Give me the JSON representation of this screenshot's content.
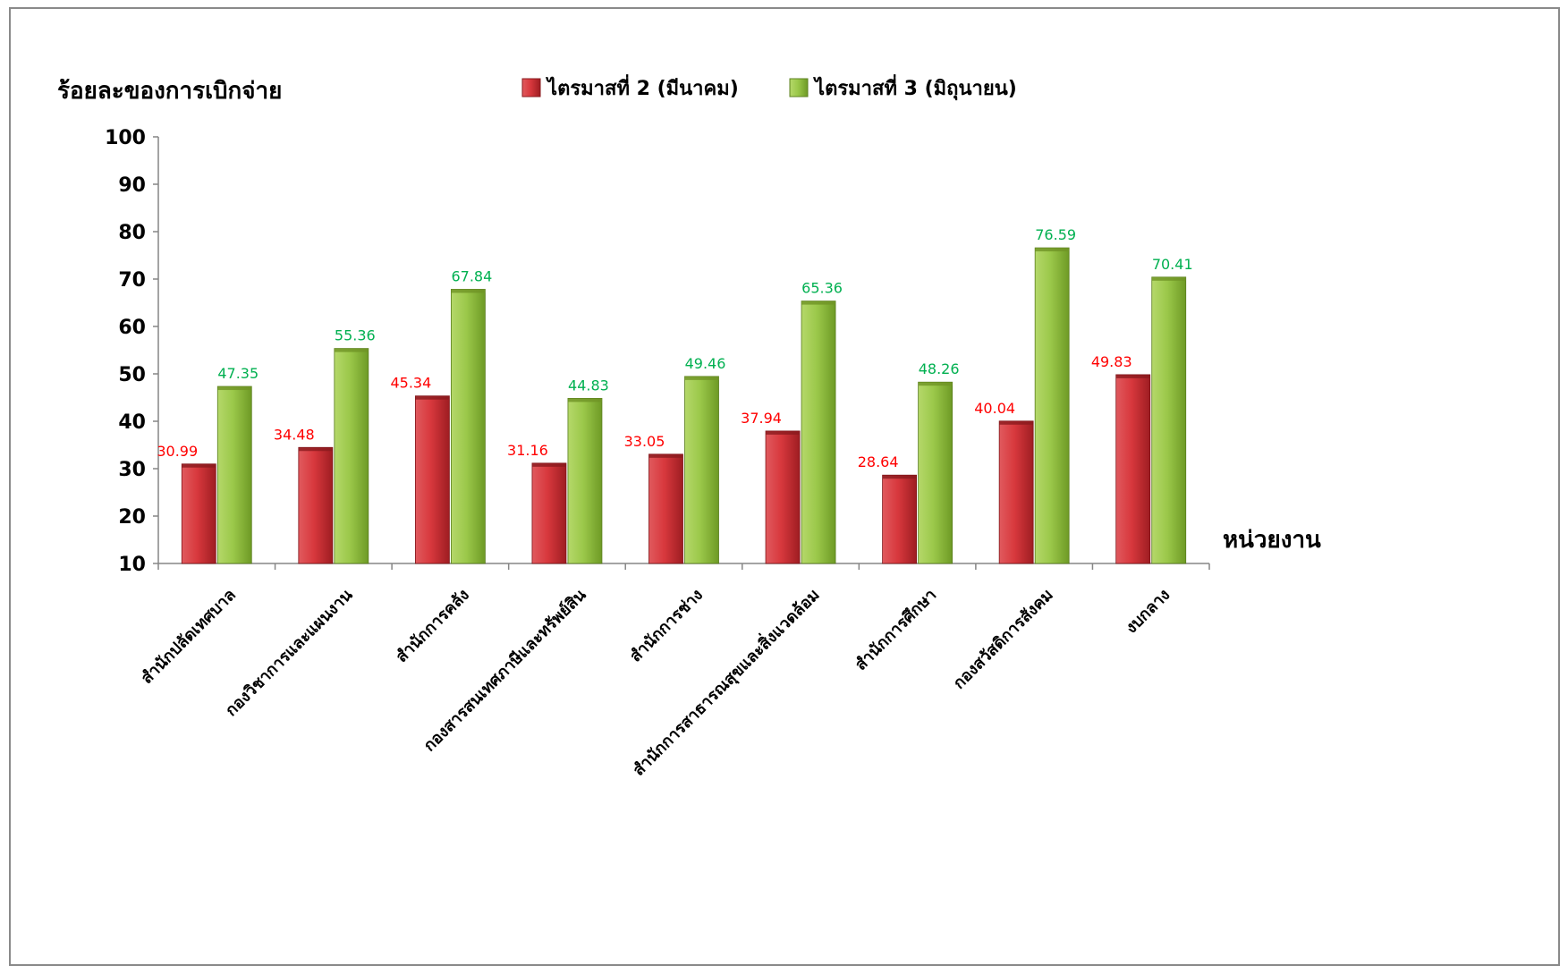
{
  "chart_data": {
    "type": "bar",
    "ylabel": "ร้อยละของการเบิกจ่าย",
    "xlabel": "หน่วยงาน",
    "ylim": [
      10,
      100
    ],
    "yticks": [
      10,
      20,
      30,
      40,
      50,
      60,
      70,
      80,
      90,
      100
    ],
    "grid": false,
    "legend_position": "top",
    "categories": [
      "สำนักปลัดเทศบาล",
      "กองวิชาการและแผนงาน",
      "สำนักการคลัง",
      "กองสารสนเทศภาษีและทรัพย์สิน",
      "สำนักการช่าง",
      "สำนักการสาธารณสุขและสิ่งแวดล้อม",
      "สำนักการศึกษา",
      "กองสวัสดิการสังคม",
      "งบกลาง"
    ],
    "series": [
      {
        "name": "ไตรมาสที่ 2 (มีนาคม)",
        "color": "#c0282d",
        "label_color": "#ff0000",
        "values": [
          30.99,
          34.48,
          45.34,
          31.16,
          33.05,
          37.94,
          28.64,
          40.04,
          49.83
        ]
      },
      {
        "name": "ไตรมาสที่ 3 (มิถุนายน)",
        "color": "#8db83b",
        "label_color": "#00b050",
        "values": [
          47.35,
          55.36,
          67.84,
          44.83,
          49.46,
          65.36,
          48.26,
          76.59,
          70.41
        ]
      }
    ]
  }
}
